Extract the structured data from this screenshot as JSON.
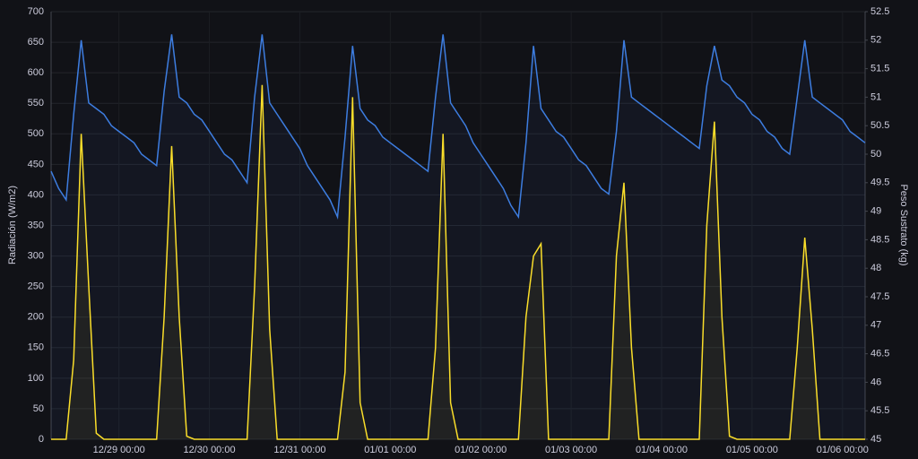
{
  "chart_data": {
    "type": "line",
    "ylabel": "Radiación (W/m2)",
    "y2label": "Peso Sustrato (kg)",
    "x": [
      "12/28 06:00",
      "12/28 08:00",
      "12/28 10:00",
      "12/28 12:00",
      "12/28 14:00",
      "12/28 16:00",
      "12/28 18:00",
      "12/28 20:00",
      "12/28 22:00",
      "12/29 00:00",
      "12/29 02:00",
      "12/29 04:00",
      "12/29 06:00",
      "12/29 08:00",
      "12/29 10:00",
      "12/29 12:00",
      "12/29 14:00",
      "12/29 16:00",
      "12/29 18:00",
      "12/29 20:00",
      "12/29 22:00",
      "12/30 00:00",
      "12/30 02:00",
      "12/30 04:00",
      "12/30 06:00",
      "12/30 08:00",
      "12/30 10:00",
      "12/30 12:00",
      "12/30 14:00",
      "12/30 16:00",
      "12/30 18:00",
      "12/30 20:00",
      "12/30 22:00",
      "12/31 00:00",
      "12/31 02:00",
      "12/31 04:00",
      "12/31 06:00",
      "12/31 08:00",
      "12/31 10:00",
      "12/31 12:00",
      "12/31 14:00",
      "12/31 16:00",
      "12/31 18:00",
      "12/31 20:00",
      "12/31 22:00",
      "01/01 00:00",
      "01/01 02:00",
      "01/01 04:00",
      "01/01 06:00",
      "01/01 08:00",
      "01/01 10:00",
      "01/01 12:00",
      "01/01 14:00",
      "01/01 16:00",
      "01/01 18:00",
      "01/01 20:00",
      "01/01 22:00",
      "01/02 00:00",
      "01/02 02:00",
      "01/02 04:00",
      "01/02 06:00",
      "01/02 08:00",
      "01/02 10:00",
      "01/02 12:00",
      "01/02 14:00",
      "01/02 16:00",
      "01/02 18:00",
      "01/02 20:00",
      "01/02 22:00",
      "01/03 00:00",
      "01/03 02:00",
      "01/03 04:00",
      "01/03 06:00",
      "01/03 08:00",
      "01/03 10:00",
      "01/03 12:00",
      "01/03 14:00",
      "01/03 16:00",
      "01/03 18:00",
      "01/03 20:00",
      "01/03 22:00",
      "01/04 00:00",
      "01/04 02:00",
      "01/04 04:00",
      "01/04 06:00",
      "01/04 08:00",
      "01/04 10:00",
      "01/04 12:00",
      "01/04 14:00",
      "01/04 16:00",
      "01/04 18:00",
      "01/04 20:00",
      "01/04 22:00",
      "01/05 00:00",
      "01/05 02:00",
      "01/05 04:00",
      "01/05 06:00",
      "01/05 08:00",
      "01/05 10:00",
      "01/05 12:00",
      "01/05 14:00",
      "01/05 16:00",
      "01/05 18:00",
      "01/05 20:00",
      "01/05 22:00",
      "01/06 00:00",
      "01/06 02:00",
      "01/06 04:00",
      "01/06 06:00"
    ],
    "xticks": [
      "12/29 00:00",
      "12/30 00:00",
      "12/31 00:00",
      "01/01 00:00",
      "01/02 00:00",
      "01/03 00:00",
      "01/04 00:00",
      "01/05 00:00",
      "01/06 00:00"
    ],
    "series": [
      {
        "color": "#3d7de0",
        "axis": "y2",
        "values": [
          49.7,
          49.4,
          49.2,
          50.7,
          52.0,
          50.9,
          50.8,
          50.7,
          50.5,
          50.4,
          50.3,
          50.2,
          50.0,
          49.9,
          49.8,
          51.1,
          52.1,
          51.0,
          50.9,
          50.7,
          50.6,
          50.4,
          50.2,
          50.0,
          49.9,
          49.7,
          49.5,
          51.0,
          52.1,
          50.9,
          50.7,
          50.5,
          50.3,
          50.1,
          49.8,
          49.6,
          49.4,
          49.2,
          48.9,
          50.3,
          51.9,
          50.8,
          50.6,
          50.5,
          50.3,
          50.2,
          50.1,
          50.0,
          49.9,
          49.8,
          49.7,
          51.0,
          52.1,
          50.9,
          50.7,
          50.5,
          50.2,
          50.0,
          49.8,
          49.6,
          49.4,
          49.1,
          48.9,
          50.2,
          51.9,
          50.8,
          50.6,
          50.4,
          50.3,
          50.1,
          49.9,
          49.8,
          49.6,
          49.4,
          49.3,
          50.4,
          52.0,
          51.0,
          50.9,
          50.8,
          50.7,
          50.6,
          50.5,
          50.4,
          50.3,
          50.2,
          50.1,
          51.2,
          51.9,
          51.3,
          51.2,
          51.0,
          50.9,
          50.7,
          50.6,
          50.4,
          50.3,
          50.1,
          50.0,
          51.0,
          52.0,
          51.0,
          50.9,
          50.8,
          50.7,
          50.6,
          50.4,
          50.3,
          50.2
        ]
      },
      {
        "color": "#fade2a",
        "values": [
          0,
          0,
          0,
          130,
          500,
          250,
          10,
          0,
          0,
          0,
          0,
          0,
          0,
          0,
          0,
          200,
          480,
          200,
          5,
          0,
          0,
          0,
          0,
          0,
          0,
          0,
          0,
          250,
          580,
          180,
          0,
          0,
          0,
          0,
          0,
          0,
          0,
          0,
          0,
          110,
          560,
          60,
          0,
          0,
          0,
          0,
          0,
          0,
          0,
          0,
          0,
          150,
          500,
          60,
          0,
          0,
          0,
          0,
          0,
          0,
          0,
          0,
          0,
          200,
          300,
          320,
          0,
          0,
          0,
          0,
          0,
          0,
          0,
          0,
          0,
          300,
          420,
          150,
          0,
          0,
          0,
          0,
          0,
          0,
          0,
          0,
          0,
          350,
          520,
          200,
          5,
          0,
          0,
          0,
          0,
          0,
          0,
          0,
          0,
          150,
          330,
          180,
          0,
          0,
          0,
          0,
          0,
          0,
          0
        ]
      }
    ],
    "ylim": [
      0,
      700
    ],
    "yticks": [
      0,
      50,
      100,
      150,
      200,
      250,
      300,
      350,
      400,
      450,
      500,
      550,
      600,
      650,
      700
    ],
    "y2lim": [
      45,
      52.5
    ],
    "y2ticks": [
      45,
      45.5,
      46,
      46.5,
      47,
      47.5,
      48,
      48.5,
      49,
      49.5,
      50,
      50.5,
      51,
      51.5,
      52,
      52.5
    ],
    "grid": true
  }
}
